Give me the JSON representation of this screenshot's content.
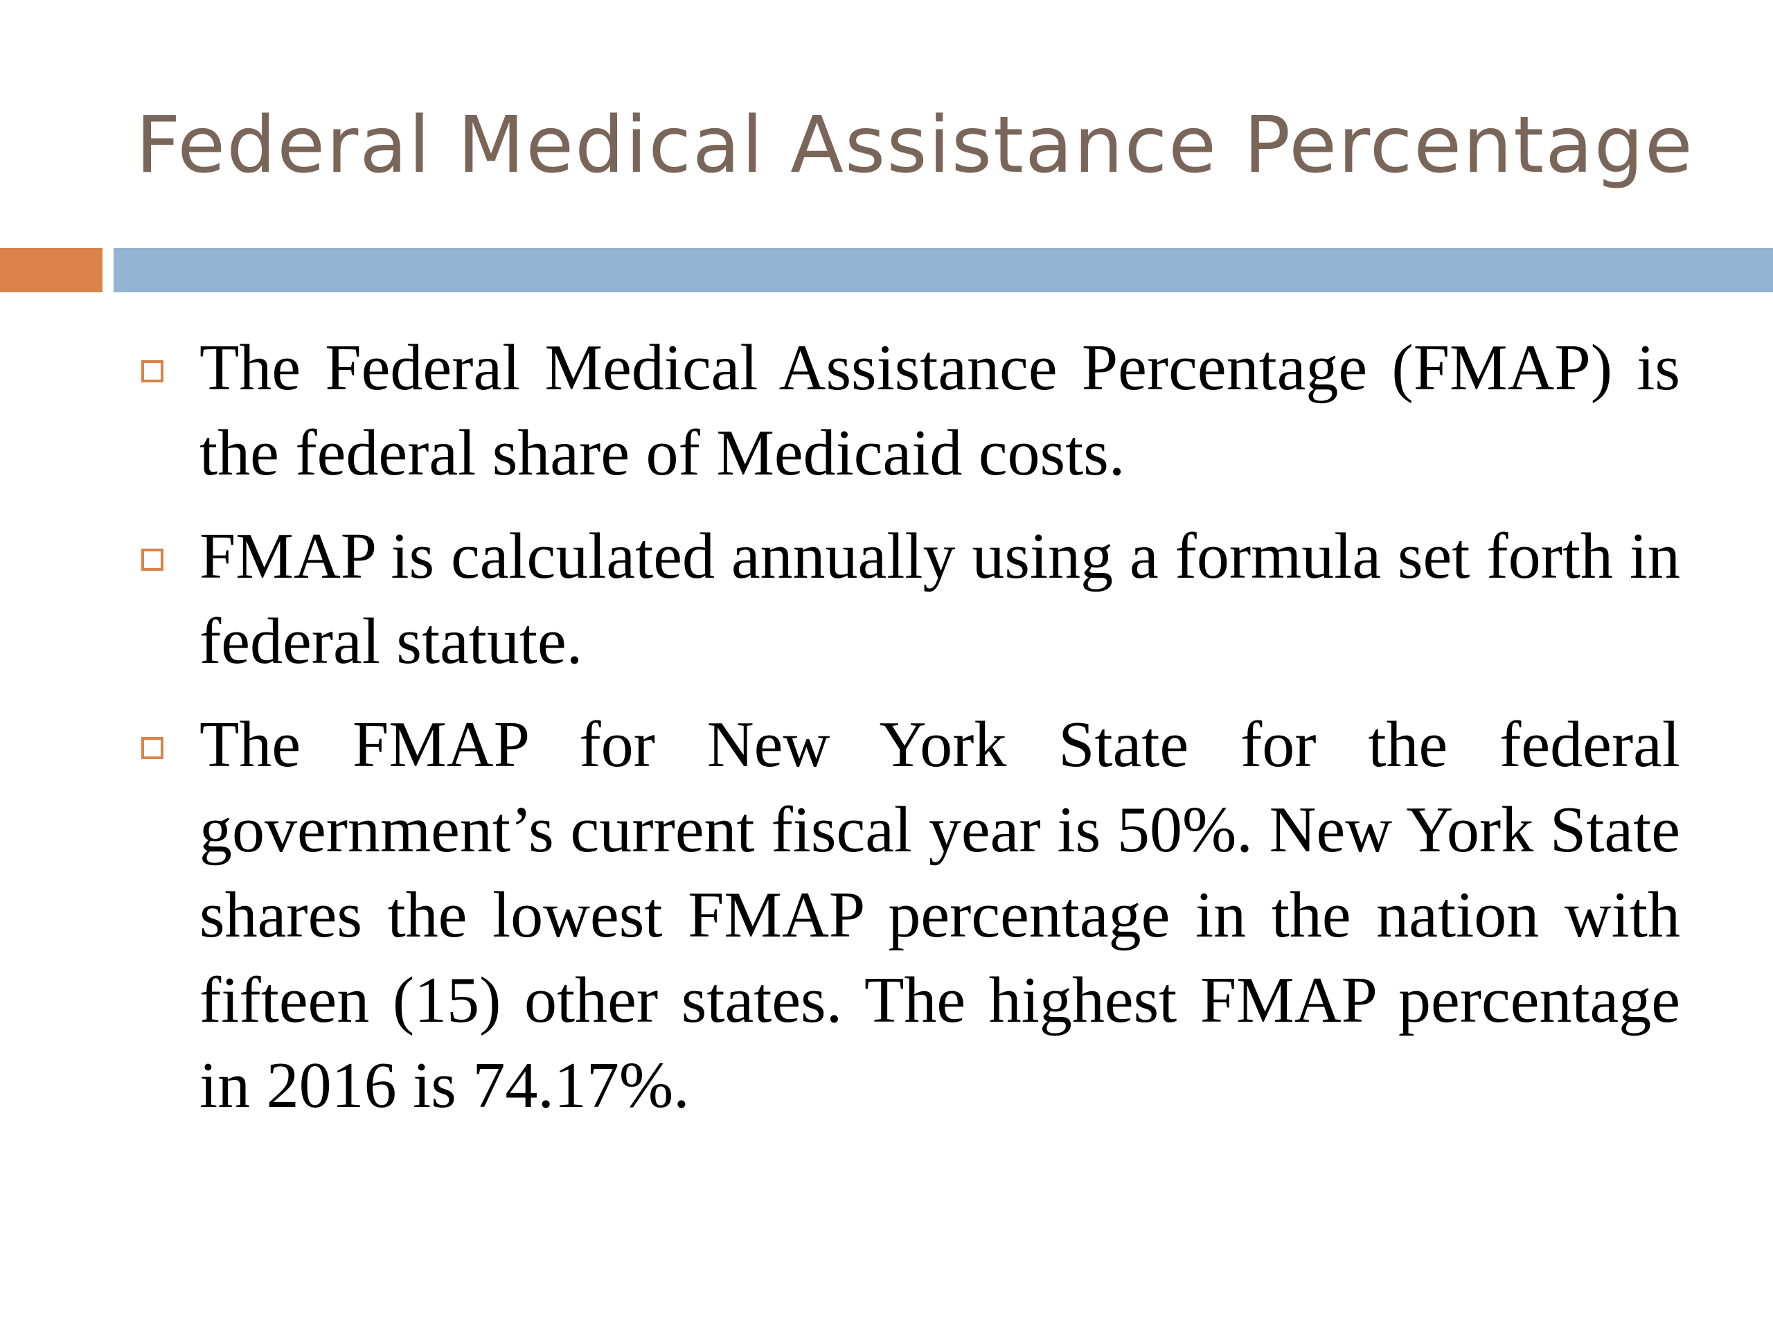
{
  "slide": {
    "title": "Federal Medical Assistance Percentage",
    "accent_colors": {
      "title": "#7a6559",
      "orange": "#d9834a",
      "blue": "#93b4d3"
    },
    "bullets": [
      {
        "icon": "square-bullet-icon",
        "text": "The Federal Medical Assistance Percentage (FMAP) is the federal share of Medicaid costs."
      },
      {
        "icon": "square-bullet-icon",
        "text": "FMAP is calculated annually using a formula set forth in federal statute."
      },
      {
        "icon": "square-bullet-icon",
        "text": "The FMAP for New York State for the federal government’s current fiscal year is 50%.  New York State shares the lowest FMAP percentage in the nation with fifteen (15) other states.  The highest FMAP percentage in 2016 is 74.17%."
      }
    ]
  }
}
